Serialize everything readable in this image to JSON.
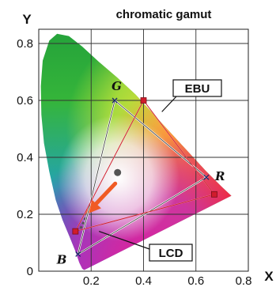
{
  "chart_data": {
    "type": "scatter",
    "title": "chromatic gamut",
    "xlabel": "X",
    "ylabel": "Y",
    "xlim": [
      0,
      0.8
    ],
    "ylim": [
      0,
      0.85
    ],
    "x_ticks": [
      "0.2",
      "0.4",
      "0.6",
      "0.8"
    ],
    "y_ticks": [
      "0",
      "0.2",
      "0.4",
      "0.6",
      "0.8"
    ],
    "grid": true,
    "series": [
      {
        "name": "EBU",
        "points": [
          {
            "label": "R",
            "x": 0.64,
            "y": 0.33
          },
          {
            "label": "G",
            "x": 0.29,
            "y": 0.6
          },
          {
            "label": "B",
            "x": 0.15,
            "y": 0.06
          }
        ],
        "color": "#ffffff"
      },
      {
        "name": "LCD",
        "points": [
          {
            "x": 0.67,
            "y": 0.27
          },
          {
            "x": 0.4,
            "y": 0.6
          },
          {
            "x": 0.14,
            "y": 0.14
          }
        ],
        "color": "#d01c2c"
      }
    ],
    "primary_labels": [
      "G",
      "R",
      "B"
    ],
    "white_point": {
      "x": 0.31,
      "y": 0.33
    },
    "arrow_color": "#f05a24"
  }
}
